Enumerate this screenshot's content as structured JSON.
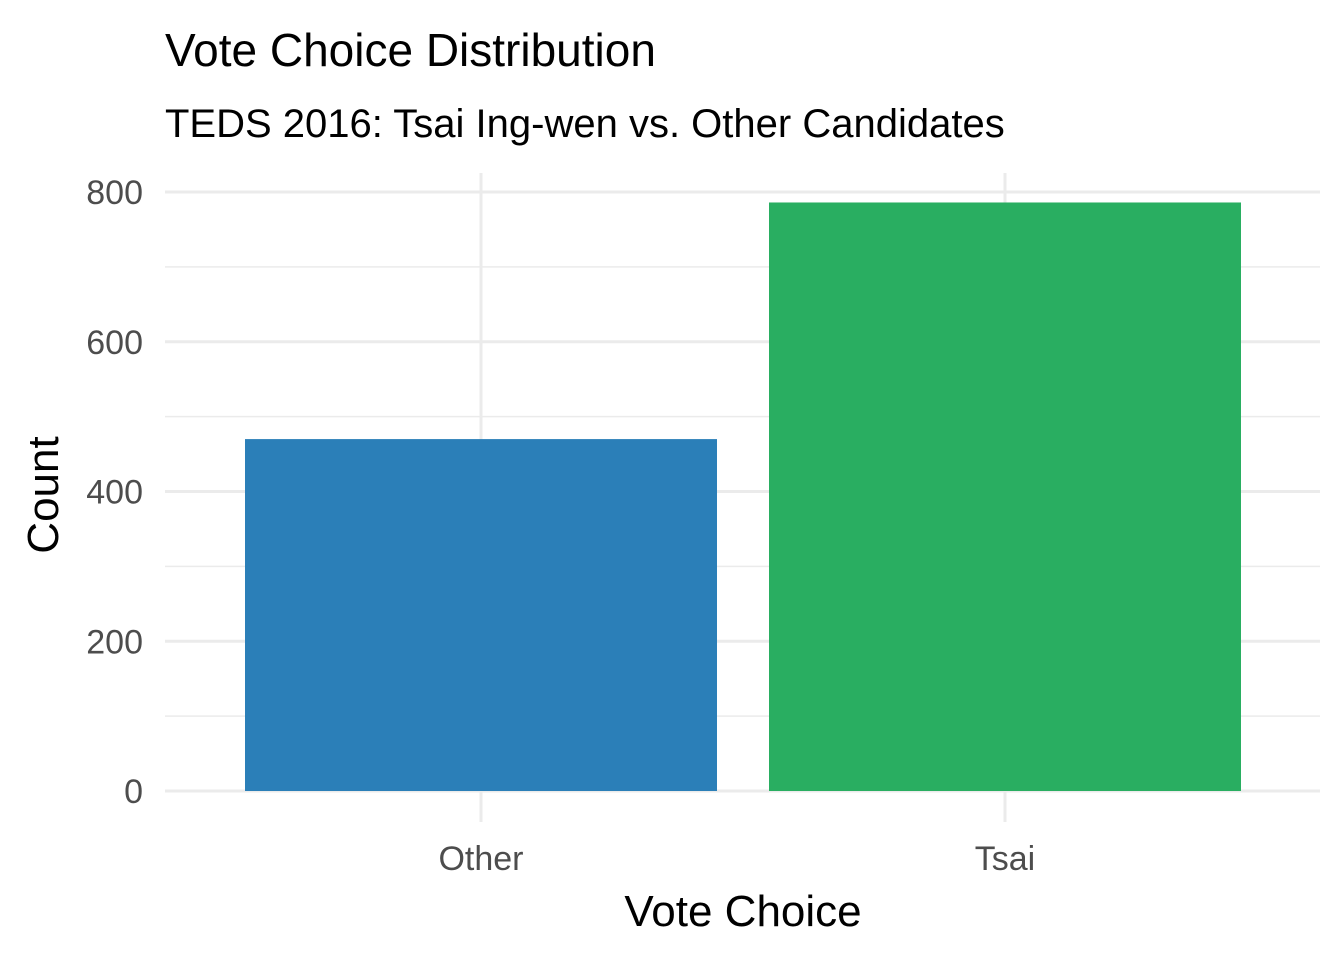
{
  "chart_data": {
    "type": "bar",
    "title": "Vote Choice Distribution",
    "subtitle": "TEDS 2016: Tsai Ing-wen vs. Other Candidates",
    "xlabel": "Vote Choice",
    "ylabel": "Count",
    "categories": [
      "Other",
      "Tsai"
    ],
    "values": [
      470,
      786
    ],
    "colors": [
      "#2b7fb8",
      "#29ae61"
    ],
    "ylim": [
      0,
      800
    ],
    "yticks": [
      0,
      200,
      400,
      600,
      800
    ],
    "ytick_labels": [
      "0",
      "200",
      "400",
      "600",
      "800"
    ],
    "grid": true,
    "legend": "none"
  }
}
